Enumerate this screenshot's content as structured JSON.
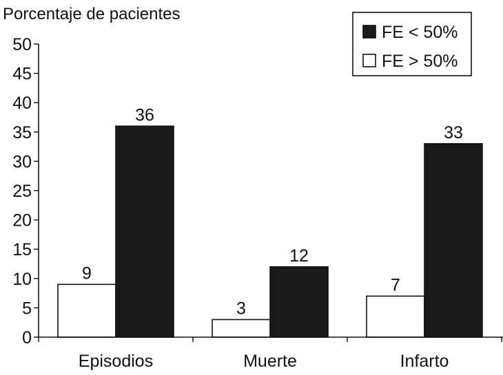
{
  "chart_data": {
    "type": "bar",
    "ylabel": "Porcentaje de pacientes",
    "xlabel": "",
    "categories": [
      "Episodios",
      "Muerte",
      "Infarto"
    ],
    "series": [
      {
        "name": "FE > 50%",
        "values": [
          9,
          3,
          7
        ],
        "color": "#ffffff",
        "legend_marker": "white-square"
      },
      {
        "name": "FE < 50%",
        "values": [
          36,
          12,
          33
        ],
        "color": "#1a1a1a",
        "legend_marker": "black-square"
      }
    ],
    "ylim": [
      0,
      50
    ],
    "yticks": [
      0,
      5,
      10,
      15,
      20,
      25,
      30,
      35,
      40,
      45,
      50
    ],
    "grid": false,
    "legend_position": "top-right",
    "legend_order": [
      1,
      0
    ],
    "data_labels": true
  }
}
